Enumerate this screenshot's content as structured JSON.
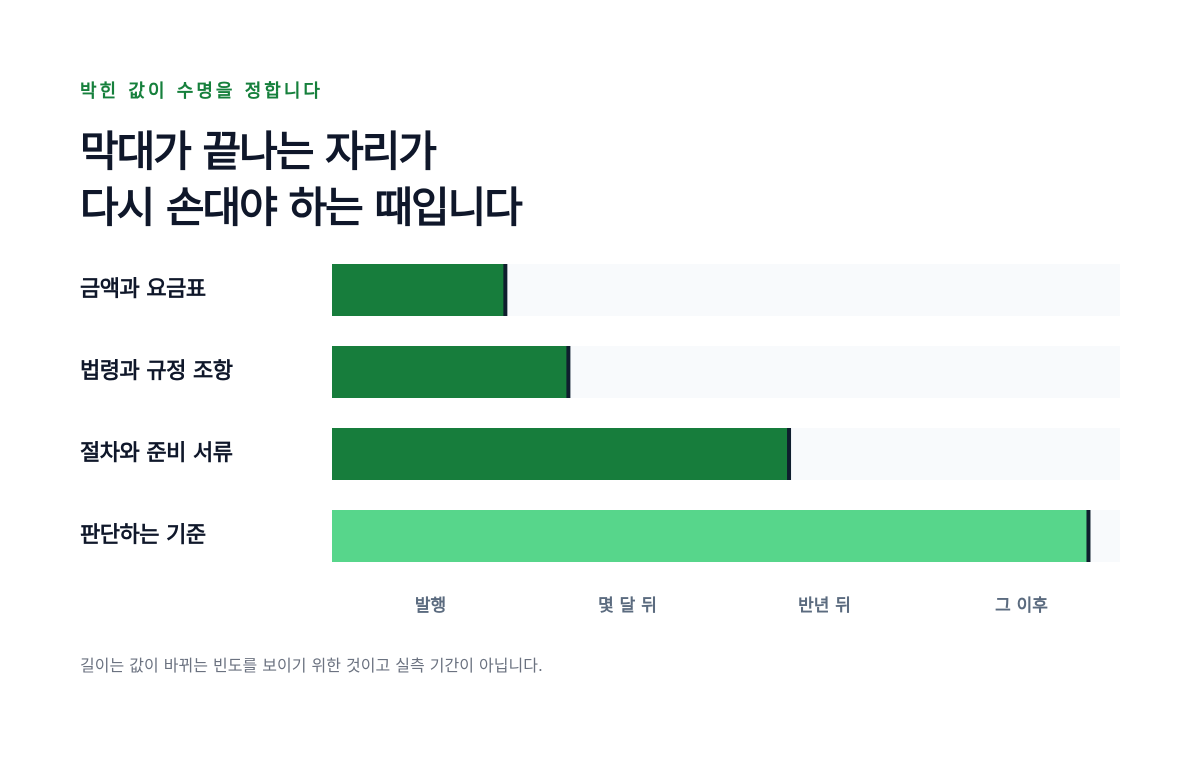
{
  "header": {
    "eyebrow": "박힌 값이 수명을 정합니다",
    "title_line1": "막대가 끝나는 자리가",
    "title_line2": "다시 손대야 하는 때입니다"
  },
  "footnote": "길이는 값이 바뀌는 빈도를 보이기 위한 것이고 실측 기간이 아닙니다.",
  "colors": {
    "bar_dark": "#177d3c",
    "bar_light": "#57d68b",
    "track": "#f8fafc",
    "end_marker": "#0f1e2e",
    "eyebrow": "#16803c"
  },
  "chart_data": {
    "type": "bar",
    "orientation": "horizontal",
    "title": "",
    "xlabel": "",
    "ylabel": "",
    "categories": [
      "금액과 요금표",
      "법령과 규정 조항",
      "절차와 준비 서류",
      "판단하는 기준"
    ],
    "values": [
      0.22,
      0.3,
      0.58,
      0.96
    ],
    "highlight": [
      false,
      false,
      false,
      true
    ],
    "xlim": [
      0,
      1
    ],
    "x_ticks": [
      {
        "label": "발행",
        "pos": 0.125
      },
      {
        "label": "몇 달 뒤",
        "pos": 0.375
      },
      {
        "label": "반년 뒤",
        "pos": 0.625
      },
      {
        "label": "그 이후",
        "pos": 0.875
      }
    ],
    "grid": false,
    "legend": "none"
  }
}
